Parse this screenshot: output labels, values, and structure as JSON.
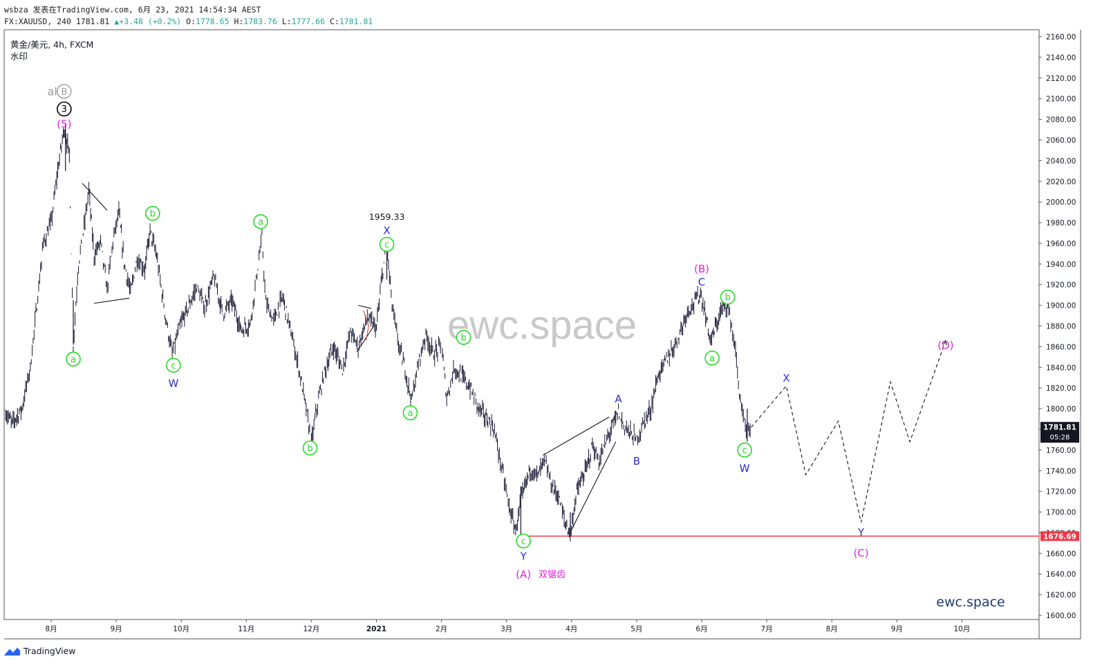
{
  "header": {
    "line1": "wsbza 发表在TradingView.com, 6月 23, 2021 14:54:34 AEST",
    "symbol": "FX:XAUUSD, 240",
    "last": "1781.81",
    "change": "+3.48 (+0.2%)",
    "o_label": "O:",
    "o_val": "1778.65",
    "h_label": "H:",
    "h_val": "1783.76",
    "l_label": "L:",
    "l_val": "1777.66",
    "c_label": "C:",
    "c_val": "1781.81"
  },
  "legend": {
    "instrument": "黄金/美元, 4h, FXCM",
    "watermark_label": "水印"
  },
  "watermark_text": "ewc.space",
  "brand_bottom_right": "ewc.space",
  "brand_footer": "TradingView",
  "colors": {
    "candles": "#131330",
    "green": "#22dd22",
    "blue": "#2a2ad0",
    "magenta": "#e020e0",
    "support": "#f23645",
    "price_tag": "#131722",
    "watermark": "#c8c8c8"
  },
  "chart_data": {
    "type": "candlestick",
    "instrument": "XAUUSD",
    "timeframe": "4h",
    "y_axis": {
      "min": 1600,
      "max": 2160,
      "step": 20,
      "ticks": [
        "2160.00",
        "2140.00",
        "2120.00",
        "2100.00",
        "2080.00",
        "2060.00",
        "2040.00",
        "2020.00",
        "2000.00",
        "1980.00",
        "1960.00",
        "1940.00",
        "1920.00",
        "1900.00",
        "1880.00",
        "1860.00",
        "1840.00",
        "1820.00",
        "1800.00",
        "1780.00",
        "1760.00",
        "1740.00",
        "1720.00",
        "1700.00",
        "1680.00",
        "1660.00",
        "1640.00",
        "1620.00",
        "1600.00"
      ],
      "current_price": "1781.81",
      "countdown": "05:28",
      "support_level": "1676.69",
      "support_value": 1676.69
    },
    "x_axis": {
      "labels": [
        {
          "t": 1.0,
          "text": "8月"
        },
        {
          "t": 2.0,
          "text": "9月"
        },
        {
          "t": 3.0,
          "text": "10月"
        },
        {
          "t": 4.0,
          "text": "11月"
        },
        {
          "t": 5.0,
          "text": "12月"
        },
        {
          "t": 6.0,
          "text": "2021"
        },
        {
          "t": 7.0,
          "text": "2月"
        },
        {
          "t": 8.0,
          "text": "3月"
        },
        {
          "t": 9.0,
          "text": "4月"
        },
        {
          "t": 10.0,
          "text": "5月"
        },
        {
          "t": 11.0,
          "text": "6月"
        },
        {
          "t": 12.0,
          "text": "7月"
        },
        {
          "t": 13.0,
          "text": "8月"
        },
        {
          "t": 14.0,
          "text": "9月"
        },
        {
          "t": 15.0,
          "text": "10月"
        }
      ],
      "t_min": 0.3,
      "t_max": 15.85
    },
    "price_path": [
      [
        0.3,
        1796
      ],
      [
        0.4,
        1786
      ],
      [
        0.55,
        1800
      ],
      [
        0.68,
        1840
      ],
      [
        0.78,
        1900
      ],
      [
        0.88,
        1960
      ],
      [
        1.0,
        1980
      ],
      [
        1.1,
        2030
      ],
      [
        1.2,
        2072
      ],
      [
        1.28,
        2045
      ],
      [
        1.34,
        1862
      ],
      [
        1.42,
        1940
      ],
      [
        1.52,
        1982
      ],
      [
        1.58,
        2012
      ],
      [
        1.66,
        1948
      ],
      [
        1.76,
        1962
      ],
      [
        1.86,
        1915
      ],
      [
        1.95,
        1962
      ],
      [
        2.04,
        1990
      ],
      [
        2.12,
        1942
      ],
      [
        2.22,
        1912
      ],
      [
        2.32,
        1945
      ],
      [
        2.44,
        1935
      ],
      [
        2.52,
        1972
      ],
      [
        2.62,
        1948
      ],
      [
        2.76,
        1888
      ],
      [
        2.86,
        1852
      ],
      [
        2.98,
        1880
      ],
      [
        3.12,
        1900
      ],
      [
        3.24,
        1918
      ],
      [
        3.36,
        1898
      ],
      [
        3.5,
        1928
      ],
      [
        3.64,
        1892
      ],
      [
        3.78,
        1905
      ],
      [
        3.92,
        1876
      ],
      [
        4.06,
        1882
      ],
      [
        4.18,
        1938
      ],
      [
        4.24,
        1965
      ],
      [
        4.3,
        1902
      ],
      [
        4.42,
        1885
      ],
      [
        4.56,
        1908
      ],
      [
        4.7,
        1870
      ],
      [
        4.82,
        1835
      ],
      [
        4.92,
        1800
      ],
      [
        5.0,
        1766
      ],
      [
        5.08,
        1800
      ],
      [
        5.2,
        1835
      ],
      [
        5.34,
        1860
      ],
      [
        5.48,
        1838
      ],
      [
        5.6,
        1875
      ],
      [
        5.72,
        1860
      ],
      [
        5.86,
        1888
      ],
      [
        6.0,
        1878
      ],
      [
        6.1,
        1935
      ],
      [
        6.16,
        1959
      ],
      [
        6.24,
        1900
      ],
      [
        6.34,
        1862
      ],
      [
        6.44,
        1838
      ],
      [
        6.54,
        1808
      ],
      [
        6.66,
        1848
      ],
      [
        6.76,
        1872
      ],
      [
        6.88,
        1852
      ],
      [
        7.0,
        1862
      ],
      [
        7.08,
        1810
      ],
      [
        7.2,
        1840
      ],
      [
        7.3,
        1832
      ],
      [
        7.44,
        1820
      ],
      [
        7.56,
        1802
      ],
      [
        7.7,
        1790
      ],
      [
        7.8,
        1782
      ],
      [
        7.92,
        1745
      ],
      [
        8.04,
        1705
      ],
      [
        8.14,
        1682
      ],
      [
        8.22,
        1710
      ],
      [
        8.36,
        1742
      ],
      [
        8.48,
        1735
      ],
      [
        8.58,
        1750
      ],
      [
        8.7,
        1725
      ],
      [
        8.8,
        1715
      ],
      [
        8.9,
        1690
      ],
      [
        8.98,
        1678
      ],
      [
        9.08,
        1720
      ],
      [
        9.22,
        1740
      ],
      [
        9.32,
        1765
      ],
      [
        9.42,
        1748
      ],
      [
        9.54,
        1770
      ],
      [
        9.64,
        1785
      ],
      [
        9.72,
        1797
      ],
      [
        9.8,
        1784
      ],
      [
        9.92,
        1775
      ],
      [
        10.0,
        1770
      ],
      [
        10.12,
        1788
      ],
      [
        10.22,
        1800
      ],
      [
        10.32,
        1830
      ],
      [
        10.46,
        1848
      ],
      [
        10.56,
        1858
      ],
      [
        10.68,
        1876
      ],
      [
        10.78,
        1895
      ],
      [
        10.88,
        1902
      ],
      [
        10.98,
        1912
      ],
      [
        11.06,
        1890
      ],
      [
        11.14,
        1865
      ],
      [
        11.22,
        1880
      ],
      [
        11.32,
        1898
      ],
      [
        11.4,
        1902
      ],
      [
        11.46,
        1880
      ],
      [
        11.52,
        1855
      ],
      [
        11.58,
        1815
      ],
      [
        11.64,
        1790
      ],
      [
        11.7,
        1772
      ],
      [
        11.76,
        1782
      ]
    ],
    "projection": [
      [
        11.76,
        1782
      ],
      [
        12.3,
        1822
      ],
      [
        12.6,
        1736
      ],
      [
        13.1,
        1788
      ],
      [
        13.45,
        1690
      ],
      [
        13.9,
        1826
      ],
      [
        14.2,
        1768
      ],
      [
        14.75,
        1866
      ]
    ],
    "wave_labels": [
      {
        "t": 1.2,
        "y": 2107,
        "text": "alt",
        "kind": "alt"
      },
      {
        "t": 1.2,
        "y": 2090,
        "text": "3",
        "kind": "circle_black"
      },
      {
        "t": 1.2,
        "y": 2076,
        "text": "(5)",
        "kind": "magenta"
      },
      {
        "t": 1.34,
        "y": 1848,
        "text": "a",
        "kind": "green"
      },
      {
        "t": 2.56,
        "y": 1989,
        "text": "b",
        "kind": "green"
      },
      {
        "t": 2.88,
        "y": 1842,
        "text": "c",
        "kind": "green"
      },
      {
        "t": 2.88,
        "y": 1825,
        "text": "W",
        "kind": "blue"
      },
      {
        "t": 4.22,
        "y": 1981,
        "text": "a",
        "kind": "green"
      },
      {
        "t": 4.98,
        "y": 1762,
        "text": "b",
        "kind": "green"
      },
      {
        "t": 6.16,
        "y": 1986,
        "text": "1959.33",
        "kind": "plain"
      },
      {
        "t": 6.16,
        "y": 1973,
        "text": "X",
        "kind": "blue"
      },
      {
        "t": 6.16,
        "y": 1959,
        "text": "c",
        "kind": "green"
      },
      {
        "t": 6.52,
        "y": 1796,
        "text": "a",
        "kind": "green"
      },
      {
        "t": 7.34,
        "y": 1869,
        "text": "b",
        "kind": "green"
      },
      {
        "t": 8.26,
        "y": 1672,
        "text": "c",
        "kind": "green"
      },
      {
        "t": 8.26,
        "y": 1658,
        "text": "Y",
        "kind": "blue"
      },
      {
        "t": 8.26,
        "y": 1640,
        "text": "(A)",
        "kind": "magenta"
      },
      {
        "t": 8.7,
        "y": 1640,
        "text": "双锯齿",
        "kind": "magenta_small"
      },
      {
        "t": 9.72,
        "y": 1810,
        "text": "A",
        "kind": "blue"
      },
      {
        "t": 10.0,
        "y": 1750,
        "text": "B",
        "kind": "blue"
      },
      {
        "t": 11.0,
        "y": 1936,
        "text": "(B)",
        "kind": "magenta"
      },
      {
        "t": 11.0,
        "y": 1923,
        "text": "C",
        "kind": "blue"
      },
      {
        "t": 11.16,
        "y": 1849,
        "text": "a",
        "kind": "green"
      },
      {
        "t": 11.4,
        "y": 1908,
        "text": "b",
        "kind": "green"
      },
      {
        "t": 11.66,
        "y": 1760,
        "text": "c",
        "kind": "green"
      },
      {
        "t": 11.66,
        "y": 1743,
        "text": "W",
        "kind": "blue"
      },
      {
        "t": 12.3,
        "y": 1830,
        "text": "X",
        "kind": "blue"
      },
      {
        "t": 13.45,
        "y": 1681,
        "text": "Y",
        "kind": "blue"
      },
      {
        "t": 13.45,
        "y": 1661,
        "text": "(C)",
        "kind": "magenta"
      },
      {
        "t": 14.75,
        "y": 1862,
        "text": "(D)",
        "kind": "magenta"
      }
    ],
    "trendlines": [
      [
        [
          1.48,
          2018
        ],
        [
          1.86,
          1992
        ]
      ],
      [
        [
          1.66,
          1902
        ],
        [
          2.2,
          1907
        ]
      ],
      [
        [
          8.56,
          1755
        ],
        [
          9.58,
          1792
        ]
      ],
      [
        [
          8.96,
          1678
        ],
        [
          9.68,
          1768
        ]
      ],
      [
        [
          5.7,
          1855
        ],
        [
          5.96,
          1880
        ]
      ],
      [
        [
          5.72,
          1900
        ],
        [
          5.92,
          1897
        ]
      ]
    ]
  }
}
